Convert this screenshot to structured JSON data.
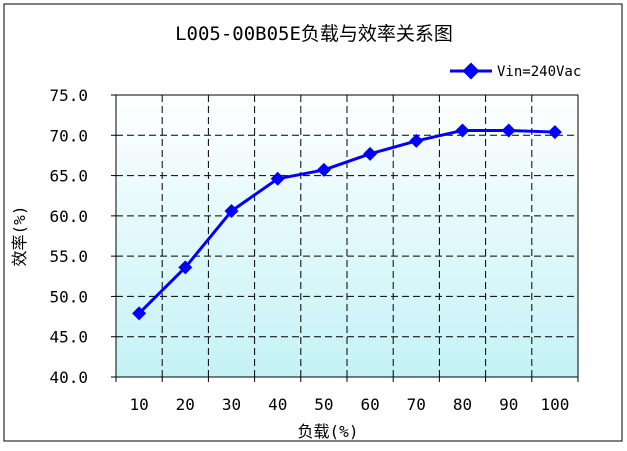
{
  "chart_data": {
    "type": "line",
    "title": "L005-00B05E负载与效率关系图",
    "xlabel": "负载(%)",
    "ylabel": "效率(%)",
    "categories": [
      "10",
      "20",
      "30",
      "40",
      "50",
      "60",
      "70",
      "80",
      "90",
      "100"
    ],
    "series": [
      {
        "name": "Vin=240Vac",
        "values": [
          47.9,
          53.6,
          60.6,
          64.6,
          65.7,
          67.7,
          69.3,
          70.6,
          70.6,
          70.4
        ]
      }
    ],
    "ylim": [
      40.0,
      75.0
    ],
    "yticks": [
      "40.0",
      "45.0",
      "50.0",
      "55.0",
      "60.0",
      "65.0",
      "70.0",
      "75.0"
    ],
    "grid": true,
    "legend_position": "top-right",
    "colors": {
      "series": "#0000ff",
      "plot_bg_top": "#ffffff",
      "plot_bg_bottom": "#c4f2f6",
      "gridline": "#000000",
      "frame": "#000000"
    }
  }
}
